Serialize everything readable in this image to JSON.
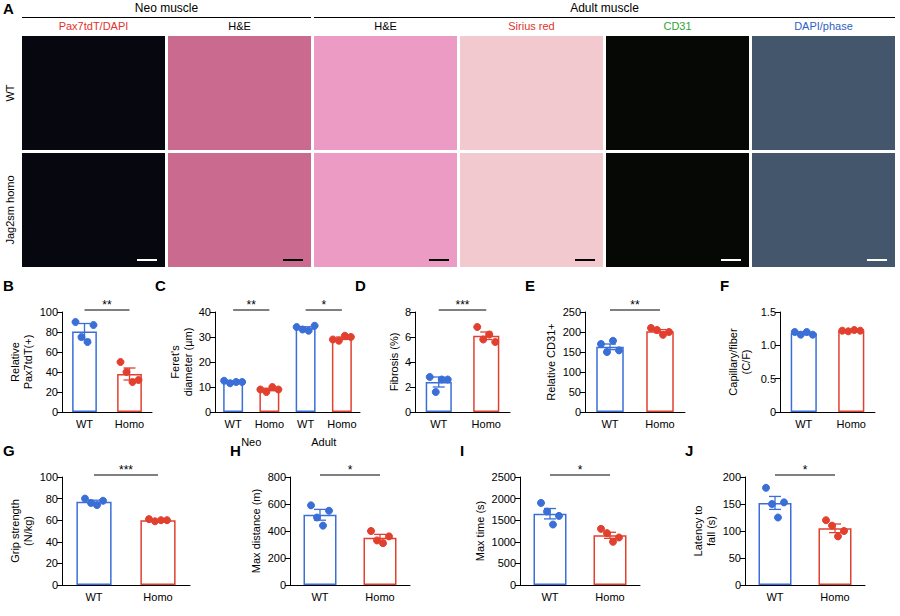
{
  "panel_A": {
    "label": "A",
    "columns": [
      {
        "title": "Pax7tdT/DAPI",
        "group": "Neo muscle",
        "color": "#e0332b"
      },
      {
        "title": "H&E",
        "group": "Neo muscle",
        "color": "#000000"
      },
      {
        "title": "H&E",
        "group": "Adult muscle",
        "color": "#000000"
      },
      {
        "title": "Sirius red",
        "group": "Adult muscle",
        "color": "#e0332b"
      },
      {
        "title": "CD31",
        "group": "Adult muscle",
        "color": "#2fa336"
      },
      {
        "title": "DAPI/phase",
        "group": "Adult muscle",
        "color": "#2f5fc4"
      }
    ],
    "rows": [
      "WT",
      "Jag2sm homo"
    ]
  },
  "chart_data": [
    {
      "type": "bar",
      "label": "B",
      "categories": [
        "WT",
        "Homo"
      ],
      "colors": [
        "#3a6fd8",
        "#e2402f"
      ],
      "values": [
        80.5,
        38
      ],
      "errors": [
        8,
        6
      ],
      "points": [
        [
          90,
          75,
          70,
          87
        ],
        [
          50,
          40,
          30,
          32
        ]
      ],
      "y_label": "Relative Pax7tdT(+)",
      "ylim": [
        0,
        100
      ],
      "yticks": [
        0,
        20,
        40,
        60,
        80,
        100
      ],
      "significance": [
        "**"
      ],
      "grid": false
    },
    {
      "type": "bar",
      "label": "C",
      "categories": [
        "WT",
        "Homo",
        "WT",
        "Homo"
      ],
      "groups": [
        "Neo",
        "Neo",
        "Adult",
        "Adult"
      ],
      "colors": [
        "#3a6fd8",
        "#e2402f",
        "#3a6fd8",
        "#e2402f"
      ],
      "values": [
        12,
        9,
        33.5,
        29.5
      ],
      "errors": [
        0.4,
        0.5,
        0.6,
        0.5
      ],
      "points": [
        [
          12.5,
          11.5,
          12,
          12
        ],
        [
          9,
          8,
          10,
          9
        ],
        [
          34,
          33,
          32.5,
          34.5
        ],
        [
          29,
          28.5,
          30.5,
          30
        ]
      ],
      "y_label": "Feret's diameter (µm)",
      "ylim": [
        0,
        40
      ],
      "yticks": [
        0,
        10,
        20,
        30,
        40
      ],
      "significance": [
        "**",
        "*"
      ],
      "grid": false
    },
    {
      "type": "bar",
      "label": "D",
      "categories": [
        "WT",
        "Homo"
      ],
      "colors": [
        "#3a6fd8",
        "#e2402f"
      ],
      "values": [
        2.4,
        6.1
      ],
      "errors": [
        0.4,
        0.3
      ],
      "points": [
        [
          2.8,
          1.6,
          2.6,
          2.6
        ],
        [
          6.8,
          5.8,
          6.2,
          5.6
        ]
      ],
      "y_label": "Fibrosis (%)",
      "ylim": [
        0,
        8
      ],
      "yticks": [
        0,
        2,
        4,
        6,
        8
      ],
      "significance": [
        "***"
      ],
      "grid": false
    },
    {
      "type": "bar",
      "label": "E",
      "categories": [
        "WT",
        "Homo"
      ],
      "colors": [
        "#3a6fd8",
        "#e2402f"
      ],
      "values": [
        163,
        202
      ],
      "errors": [
        7,
        4
      ],
      "points": [
        [
          170,
          150,
          178,
          154
        ],
        [
          210,
          205,
          193,
          200
        ]
      ],
      "y_label": "Relative CD31+",
      "ylim": [
        0,
        250
      ],
      "yticks": [
        0,
        50,
        100,
        150,
        200,
        250
      ],
      "significance": [
        "**"
      ],
      "grid": false
    },
    {
      "type": "bar",
      "label": "F",
      "categories": [
        "WT",
        "Homo"
      ],
      "colors": [
        "#3a6fd8",
        "#e2402f"
      ],
      "values": [
        1.18,
        1.22
      ],
      "errors": [
        0.02,
        0.01
      ],
      "points": [
        [
          1.2,
          1.16,
          1.2,
          1.16
        ],
        [
          1.22,
          1.21,
          1.23,
          1.22
        ]
      ],
      "y_label": "Capillary/fiber (C/F)",
      "ylim": [
        0,
        1.5
      ],
      "yticks": [
        0,
        0.5,
        {
          "value": 1,
          "label": "1.0"
        },
        1.5
      ],
      "grid": false
    },
    {
      "type": "bar",
      "label": "G",
      "categories": [
        "WT",
        "Homo"
      ],
      "colors": [
        "#3a6fd8",
        "#e2402f"
      ],
      "values": [
        77,
        60
      ],
      "errors": [
        1.5,
        0.5
      ],
      "points": [
        [
          80,
          76,
          74,
          78
        ],
        [
          61,
          59,
          60,
          60
        ]
      ],
      "y_label": "Grip strength (N/kg)",
      "ylim": [
        0,
        100
      ],
      "yticks": [
        0,
        20,
        40,
        60,
        80,
        100
      ],
      "significance": [
        "***"
      ],
      "grid": false
    },
    {
      "type": "bar",
      "label": "H",
      "categories": [
        "WT",
        "Homo"
      ],
      "colors": [
        "#3a6fd8",
        "#e2402f"
      ],
      "values": [
        520,
        350
      ],
      "errors": [
        40,
        25
      ],
      "points": [
        [
          590,
          500,
          440,
          550
        ],
        [
          400,
          330,
          310,
          360
        ]
      ],
      "y_label": "Max distance (m)",
      "ylim": [
        0,
        800
      ],
      "yticks": [
        0,
        200,
        400,
        600,
        800
      ],
      "significance": [
        "*"
      ],
      "grid": false
    },
    {
      "type": "bar",
      "label": "I",
      "categories": [
        "WT",
        "Homo"
      ],
      "colors": [
        "#3a6fd8",
        "#e2402f"
      ],
      "values": [
        1650,
        1150
      ],
      "errors": [
        120,
        70
      ],
      "points": [
        [
          1900,
          1700,
          1400,
          1600
        ],
        [
          1300,
          1200,
          1000,
          1100
        ]
      ],
      "y_label": "Max time (s)",
      "ylim": [
        0,
        2500
      ],
      "yticks": [
        0,
        500,
        1000,
        1500,
        2000,
        2500
      ],
      "significance": [
        "*"
      ],
      "grid": false
    },
    {
      "type": "bar",
      "label": "J",
      "categories": [
        "WT",
        "Homo"
      ],
      "colors": [
        "#3a6fd8",
        "#e2402f"
      ],
      "values": [
        152,
        105
      ],
      "errors": [
        12,
        8
      ],
      "points": [
        [
          180,
          150,
          125,
          153
        ],
        [
          120,
          110,
          90,
          100
        ]
      ],
      "y_label": "Latency to fall (s)",
      "ylim": [
        0,
        200
      ],
      "yticks": [
        0,
        50,
        100,
        150,
        200
      ],
      "significance": [
        "*"
      ],
      "grid": false
    }
  ]
}
